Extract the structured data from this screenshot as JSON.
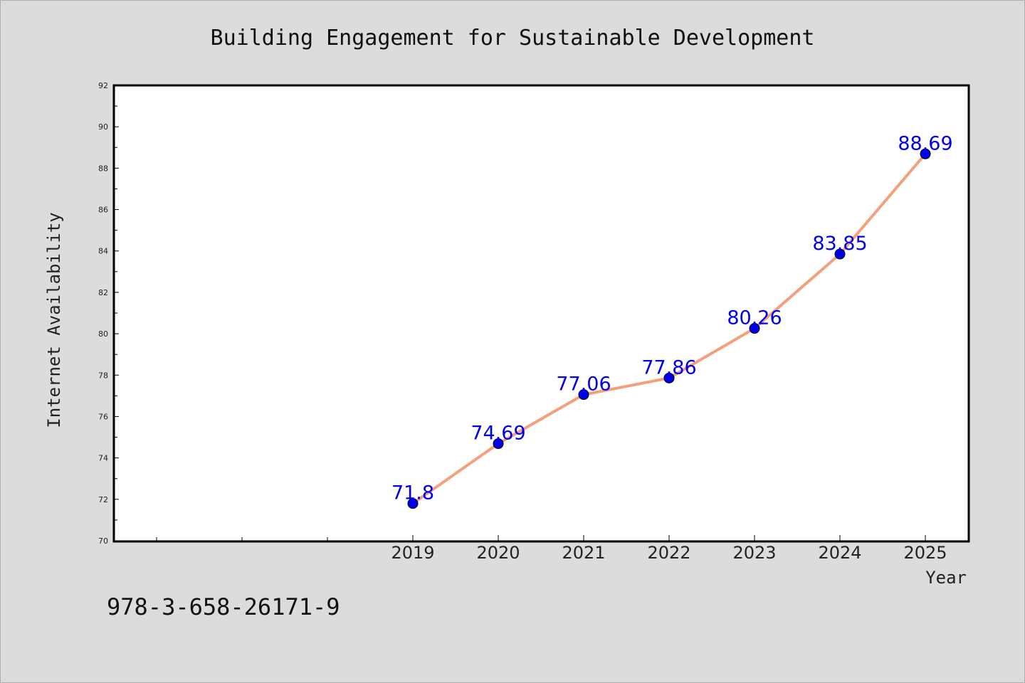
{
  "chart_data": {
    "type": "line",
    "title": "Building Engagement for Sustainable Development",
    "xlabel": "Year",
    "ylabel": "Internet Availability",
    "x": [
      2019,
      2020,
      2021,
      2022,
      2023,
      2024,
      2025
    ],
    "series": [
      {
        "values": [
          71.8,
          74.69,
          77.06,
          77.86,
          80.26,
          83.85,
          88.69
        ],
        "data_labels": [
          "71.8",
          "74.69",
          "77.06",
          "77.86",
          "80.26",
          "83.85",
          "88.69"
        ],
        "line_color": "#f4a07c",
        "marker_color": "#0000ee"
      }
    ],
    "xlim": [
      2015.5,
      2025.5
    ],
    "ylim": [
      70,
      92
    ],
    "yticks": [
      70,
      72,
      74,
      76,
      78,
      80,
      82,
      84,
      86,
      88,
      90,
      92
    ],
    "grid": false,
    "legend": "none"
  },
  "footer_text": "978-3-658-26171-9",
  "colors": {
    "background": "#dcdcdc",
    "plot_background": "#ffffff",
    "axis": "#000000"
  }
}
